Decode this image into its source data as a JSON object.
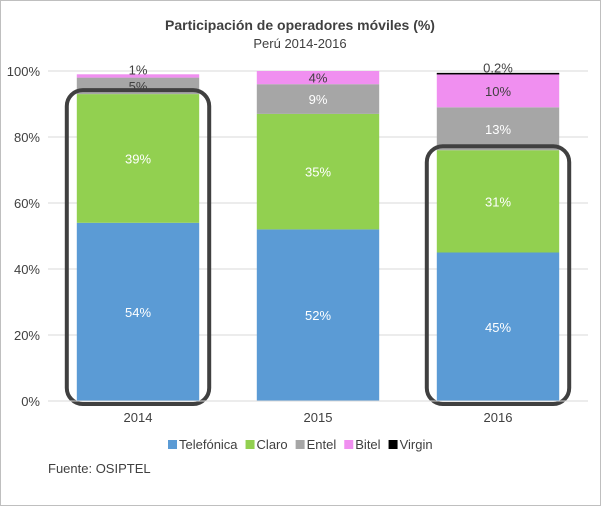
{
  "chart_data": {
    "type": "bar",
    "stacked": true,
    "title": "Participación de operadores móviles (%)",
    "subtitle": "Perú 2014-2016",
    "categories": [
      "2014",
      "2015",
      "2016"
    ],
    "ylim": [
      0,
      100
    ],
    "yticks": [
      "0%",
      "20%",
      "40%",
      "60%",
      "80%",
      "100%"
    ],
    "grid": true,
    "legend_position": "bottom",
    "series": [
      {
        "name": "Telefónica",
        "color": "#5b9bd5",
        "values": [
          54,
          52,
          45
        ],
        "labels": [
          "54%",
          "52%",
          "45%"
        ]
      },
      {
        "name": "Claro",
        "color": "#92d050",
        "values": [
          39,
          35,
          31
        ],
        "labels": [
          "39%",
          "35%",
          "31%"
        ]
      },
      {
        "name": "Entel",
        "color": "#a6a6a6",
        "values": [
          5,
          9,
          13
        ],
        "labels": [
          "5%",
          "9%",
          "13%"
        ]
      },
      {
        "name": "Bitel",
        "color": "#f08ff0",
        "values": [
          1,
          4,
          10
        ],
        "labels": [
          "1%",
          "4%",
          "10%"
        ]
      },
      {
        "name": "Virgin",
        "color": "#000000",
        "values": [
          0,
          0,
          0.2
        ],
        "labels": [
          "",
          "",
          "0.2%"
        ]
      }
    ],
    "highlighted_categories": [
      "2014",
      "2016"
    ],
    "highlight_color": "#404040"
  },
  "source_note": "Fuente: OSIPTEL"
}
